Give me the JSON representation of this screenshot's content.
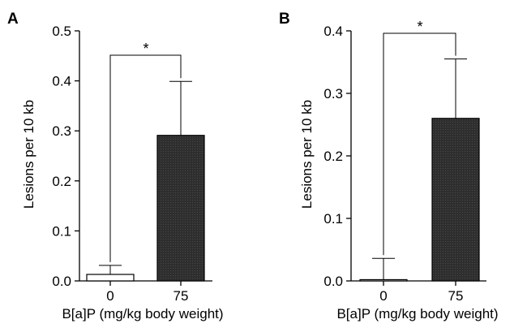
{
  "chart_data": [
    {
      "panel": "A",
      "type": "bar",
      "categories": [
        "0",
        "75"
      ],
      "values": [
        0.013,
        0.291
      ],
      "error_upper": [
        0.031,
        0.399
      ],
      "ylabel": "Lesions per 10 kb",
      "xlabel": "B[a]P (mg/kg body weight)",
      "ylim": [
        0,
        0.5
      ],
      "yticks": [
        "0.0",
        "0.1",
        "0.2",
        "0.3",
        "0.4",
        "0.5"
      ],
      "significance": {
        "between": [
          "0",
          "75"
        ],
        "label": "*"
      },
      "bar_colors": [
        "#ffffff",
        "#2e2e2e"
      ]
    },
    {
      "panel": "B",
      "type": "bar",
      "categories": [
        "0",
        "75"
      ],
      "values": [
        0.002,
        0.26
      ],
      "error_upper": [
        0.036,
        0.355
      ],
      "ylabel": "Lesions per 10 kb",
      "xlabel": "B[a]P (mg/kg body weight)",
      "ylim": [
        0,
        0.4
      ],
      "yticks": [
        "0.0",
        "0.1",
        "0.2",
        "0.3",
        "0.4"
      ],
      "significance": {
        "between": [
          "0",
          "75"
        ],
        "label": "*"
      },
      "bar_colors": [
        "#ffffff",
        "#2e2e2e"
      ]
    }
  ]
}
